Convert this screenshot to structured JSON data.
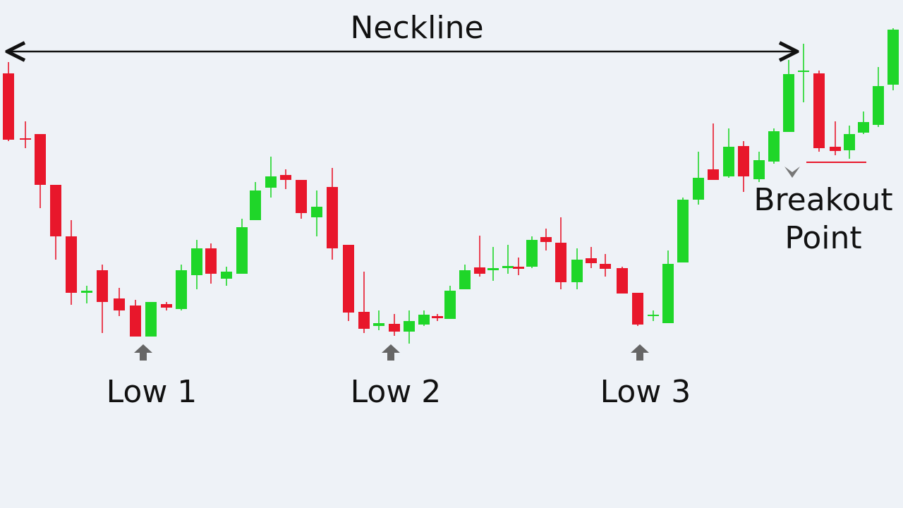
{
  "neckline": "Neckline",
  "lows": [
    "Low 1",
    "Low 2",
    "Low 3"
  ],
  "breakout": [
    "Breakout",
    "Point"
  ]
}
